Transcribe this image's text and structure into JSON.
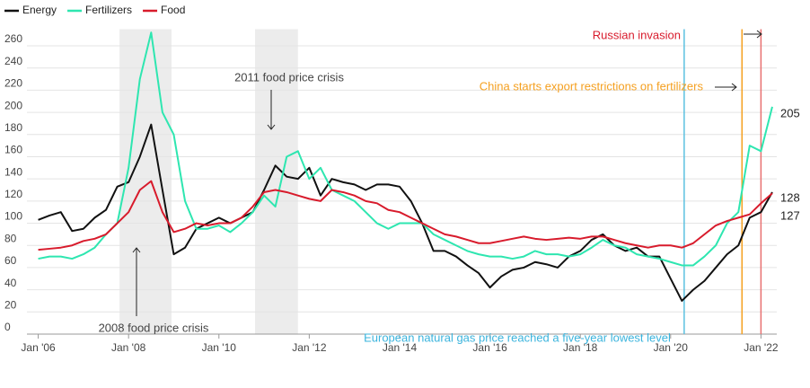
{
  "chart_data": {
    "type": "line",
    "x": [
      2006,
      2006.25,
      2006.5,
      2006.75,
      2007,
      2007.25,
      2007.5,
      2007.75,
      2008,
      2008.25,
      2008.5,
      2008.75,
      2009,
      2009.25,
      2009.5,
      2009.75,
      2010,
      2010.25,
      2010.5,
      2010.75,
      2011,
      2011.25,
      2011.5,
      2011.75,
      2012,
      2012.25,
      2012.5,
      2012.75,
      2013,
      2013.25,
      2013.5,
      2013.75,
      2014,
      2014.25,
      2014.5,
      2014.75,
      2015,
      2015.25,
      2015.5,
      2015.75,
      2016,
      2016.25,
      2016.5,
      2016.75,
      2017,
      2017.25,
      2017.5,
      2017.75,
      2018,
      2018.25,
      2018.5,
      2018.75,
      2019,
      2019.25,
      2019.5,
      2019.75,
      2020,
      2020.25,
      2020.5,
      2020.75,
      2021,
      2021.25,
      2021.5,
      2021.75,
      2022,
      2022.25
    ],
    "series": [
      {
        "name": "Energy",
        "color": "#111111",
        "values": [
          103,
          107,
          110,
          93,
          95,
          105,
          112,
          133,
          137,
          160,
          189,
          130,
          72,
          78,
          95,
          100,
          105,
          100,
          105,
          110,
          130,
          152,
          142,
          140,
          150,
          125,
          140,
          137,
          135,
          130,
          135,
          135,
          133,
          120,
          100,
          75,
          75,
          70,
          62,
          55,
          42,
          52,
          58,
          60,
          65,
          63,
          60,
          70,
          75,
          85,
          90,
          80,
          75,
          78,
          70,
          70,
          50,
          30,
          40,
          48,
          60,
          72,
          80,
          105,
          110,
          128
        ]
      },
      {
        "name": "Fertilizers",
        "color": "#2ee6b0",
        "values": [
          68,
          70,
          70,
          68,
          72,
          78,
          90,
          100,
          150,
          230,
          272,
          200,
          180,
          120,
          95,
          95,
          98,
          92,
          100,
          110,
          125,
          115,
          160,
          165,
          140,
          150,
          130,
          125,
          120,
          110,
          100,
          95,
          100,
          100,
          100,
          90,
          85,
          80,
          75,
          72,
          70,
          70,
          68,
          70,
          75,
          72,
          72,
          70,
          72,
          78,
          85,
          80,
          78,
          72,
          70,
          68,
          65,
          62,
          62,
          70,
          80,
          100,
          110,
          170,
          165,
          205
        ]
      },
      {
        "name": "Food",
        "color": "#d81b2c",
        "values": [
          76,
          77,
          78,
          80,
          84,
          86,
          90,
          100,
          110,
          130,
          138,
          110,
          92,
          95,
          100,
          98,
          100,
          100,
          105,
          115,
          128,
          130,
          128,
          125,
          122,
          120,
          130,
          128,
          125,
          120,
          118,
          112,
          110,
          105,
          100,
          95,
          90,
          88,
          85,
          82,
          82,
          84,
          86,
          88,
          86,
          85,
          86,
          87,
          86,
          88,
          88,
          85,
          82,
          80,
          78,
          80,
          80,
          78,
          82,
          90,
          98,
          102,
          105,
          108,
          118,
          127
        ]
      }
    ],
    "xlim": [
      2005.75,
      2022.35
    ],
    "ylim": [
      0,
      275
    ],
    "xticks": [
      {
        "value": 2006,
        "label": "Jan '06"
      },
      {
        "value": 2008,
        "label": "Jan '08"
      },
      {
        "value": 2010,
        "label": "Jan '10"
      },
      {
        "value": 2012,
        "label": "Jan '12"
      },
      {
        "value": 2014,
        "label": "Jan '14"
      },
      {
        "value": 2016,
        "label": "Jan '16"
      },
      {
        "value": 2018,
        "label": "Jan '18"
      },
      {
        "value": 2020,
        "label": "Jan '20"
      },
      {
        "value": 2022,
        "label": "Jan '22"
      }
    ],
    "yticks": [
      0,
      20,
      40,
      60,
      80,
      100,
      120,
      140,
      160,
      180,
      200,
      220,
      240,
      260
    ],
    "grid": true,
    "shaded_ranges": [
      [
        2007.8,
        2008.95
      ],
      [
        2010.8,
        2011.75
      ]
    ],
    "event_lines": [
      {
        "x": 2020.3,
        "color": "#5bc0e0"
      },
      {
        "x": 2021.58,
        "color": "#f5a020"
      },
      {
        "x": 2022.0,
        "color": "#e87070"
      }
    ],
    "annotations": [
      "2011 food price crisis",
      "2008 food price crisis",
      "Russian invasion",
      "China starts export restrictions on fertilizers",
      "European natural gas price reached a five-year lowest level"
    ]
  }
}
